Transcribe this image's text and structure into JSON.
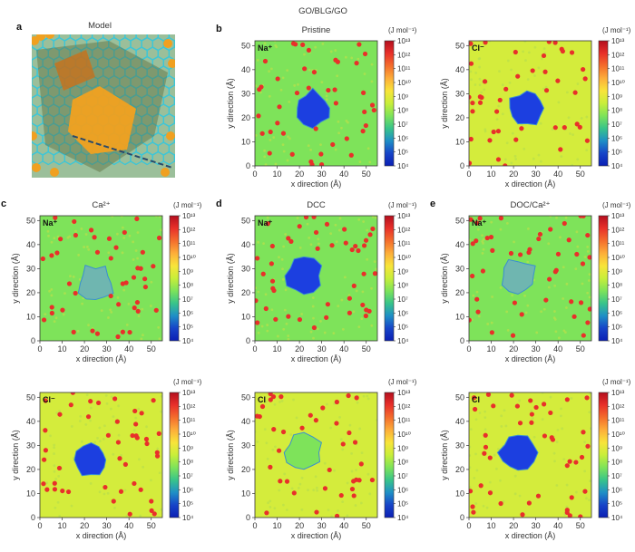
{
  "figure_title": "GO/BLG/GO",
  "colorbar": {
    "unit": "(J mol⁻¹)",
    "ticks": [
      "10¹³",
      "10¹²",
      "10¹¹",
      "10¹⁰",
      "10⁹",
      "10⁸",
      "10⁷",
      "10⁶",
      "10⁵",
      "10⁴"
    ],
    "colors": [
      "#b40f1e",
      "#e8302a",
      "#f46d2c",
      "#fdae3a",
      "#f8e43a",
      "#c8ee3a",
      "#7ee35a",
      "#38c48a",
      "#1f8fc6",
      "#1744c8",
      "#0b1fb4"
    ]
  },
  "model_panel": {
    "letter": "a",
    "title": "Model"
  },
  "chart_data": [
    {
      "type": "heatmap",
      "panel": "b",
      "title": "Pristine",
      "ion": "Na⁺",
      "xlabel": "x direction (Å)",
      "ylabel": "y direction (Å)",
      "xlim": [
        0,
        55
      ],
      "ylim": [
        0,
        52
      ],
      "xticks": [
        0,
        10,
        20,
        30,
        40,
        50
      ],
      "yticks": [
        0,
        10,
        20,
        30,
        40,
        50
      ],
      "background": "#7ee35a",
      "hole": {
        "center": [
          26,
          24
        ],
        "color": "#1c3fe0"
      }
    },
    {
      "type": "heatmap",
      "panel": "",
      "title": "",
      "ion": "Cl⁻",
      "xlabel": "x direction (Å)",
      "ylabel": "y direction (Å)",
      "xlim": [
        0,
        55
      ],
      "ylim": [
        0,
        52
      ],
      "xticks": [
        0,
        10,
        20,
        30,
        40,
        50
      ],
      "yticks": [
        0,
        10,
        20,
        30,
        40,
        50
      ],
      "background": "#d4ec3c",
      "hole": {
        "center": [
          26,
          24
        ],
        "color": "#1c3fe0"
      }
    },
    {
      "type": "heatmap",
      "panel": "c",
      "title": "Ca²⁺",
      "ion": "Na⁺",
      "xlabel": "x direction (Å)",
      "ylabel": "y direction (Å)",
      "xlim": [
        0,
        55
      ],
      "ylim": [
        0,
        52
      ],
      "xticks": [
        0,
        10,
        20,
        30,
        40,
        50
      ],
      "yticks": [
        0,
        10,
        20,
        30,
        40,
        50
      ],
      "background": "#7ee35a",
      "hole": {
        "center": [
          25,
          24
        ],
        "color": "#6fb6b0"
      }
    },
    {
      "type": "heatmap",
      "panel": "d",
      "title": "DCC",
      "ion": "Na⁺",
      "xlabel": "x direction (Å)",
      "ylabel": "y direction (Å)",
      "xlim": [
        0,
        55
      ],
      "ylim": [
        0,
        52
      ],
      "xticks": [
        0,
        10,
        20,
        30,
        40,
        50
      ],
      "yticks": [
        0,
        10,
        20,
        30,
        40,
        50
      ],
      "background": "#7ee35a",
      "hole": {
        "center": [
          22,
          27
        ],
        "color": "#1c3fe0"
      }
    },
    {
      "type": "heatmap",
      "panel": "e",
      "title": "DOC/Ca²⁺",
      "ion": "Na⁺",
      "xlabel": "x direction (Å)",
      "ylabel": "y direction (Å)",
      "xlim": [
        0,
        55
      ],
      "ylim": [
        0,
        52
      ],
      "xticks": [
        0,
        10,
        20,
        30,
        40,
        50
      ],
      "yticks": [
        0,
        10,
        20,
        30,
        40,
        50
      ],
      "background": "#7ee35a",
      "hole": {
        "center": [
          22,
          27
        ],
        "color": "#6fb6b0"
      }
    },
    {
      "type": "heatmap",
      "panel": "",
      "title": "",
      "ion": "Cl⁻",
      "xlabel": "x direction (Å)",
      "ylabel": "y direction (Å)",
      "xlim": [
        0,
        55
      ],
      "ylim": [
        0,
        52
      ],
      "xticks": [
        0,
        10,
        20,
        30,
        40,
        50
      ],
      "yticks": [
        0,
        10,
        20,
        30,
        40,
        50
      ],
      "background": "#d4ec3c",
      "hole": {
        "center": [
          23,
          24
        ],
        "color": "#1c3fe0"
      }
    },
    {
      "type": "heatmap",
      "panel": "",
      "title": "",
      "ion": "Cl",
      "xlabel": "x direction (Å)",
      "ylabel": "y direction (Å)",
      "xlim": [
        0,
        55
      ],
      "ylim": [
        0,
        52
      ],
      "xticks": [
        0,
        10,
        20,
        30,
        40,
        50
      ],
      "yticks": [
        0,
        10,
        20,
        30,
        40,
        50
      ],
      "background": "#d4ec3c",
      "hole": {
        "center": [
          22,
          27
        ],
        "color": "#7ee35a"
      }
    },
    {
      "type": "heatmap",
      "panel": "",
      "title": "",
      "ion": "Cl",
      "xlabel": "x direction (Å)",
      "ylabel": "y direction (Å)",
      "xlim": [
        0,
        55
      ],
      "ylim": [
        0,
        52
      ],
      "xticks": [
        0,
        10,
        20,
        30,
        40,
        50
      ],
      "yticks": [
        0,
        10,
        20,
        30,
        40,
        50
      ],
      "background": "#d4ec3c",
      "hole": {
        "center": [
          22,
          27
        ],
        "color": "#1c3fe0"
      }
    }
  ]
}
